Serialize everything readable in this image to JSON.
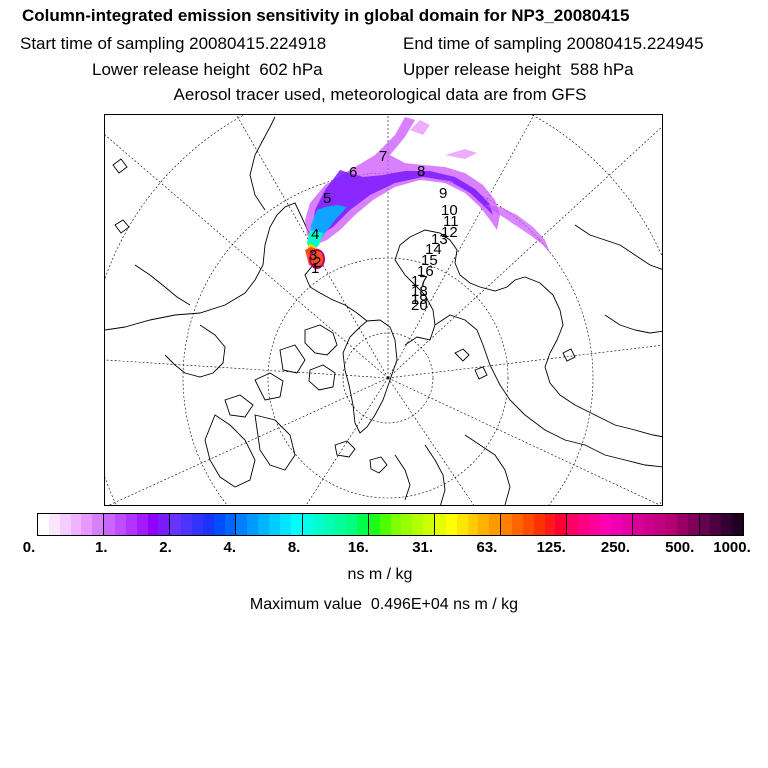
{
  "header": {
    "title": "Column-integrated emission sensitivity in global domain for NP3_20080415",
    "start_label": "Start time of sampling",
    "start_value": "20080415.224918",
    "end_label": "End time of sampling",
    "end_value": "20080415.224945",
    "lower_label": "Lower release height",
    "lower_value": "602 hPa",
    "upper_label": "Upper release height",
    "upper_value": "588 hPa",
    "aerosol_line": "Aerosol tracer used, meteorological data are from GFS"
  },
  "map": {
    "projection": "north-polar-stereographic",
    "trajectory_labels": [
      "1",
      "2",
      "3",
      "4",
      "5",
      "6",
      "7",
      "8",
      "9",
      "10",
      "11",
      "12",
      "13",
      "14",
      "15",
      "16",
      "17",
      "18",
      "19",
      "20"
    ]
  },
  "colorbar": {
    "tick_labels": [
      "0.",
      "1.",
      "2.",
      "4.",
      "8.",
      "16.",
      "31.",
      "63.",
      "125.",
      "250.",
      "500.",
      "1000."
    ],
    "colors": [
      "#ffffff",
      "#fbe6ff",
      "#f5ccff",
      "#efb3ff",
      "#e899ff",
      "#d680ff",
      "#c966ff",
      "#bf4dff",
      "#b333ff",
      "#a31aff",
      "#8f00ff",
      "#7a1aff",
      "#6633ff",
      "#4d33ff",
      "#3333ff",
      "#1a33ff",
      "#004dff",
      "#0066ff",
      "#0080ff",
      "#0099ff",
      "#00b3ff",
      "#00ccff",
      "#00e6ff",
      "#00ffff",
      "#00ffe6",
      "#00ffcc",
      "#00ffb3",
      "#00ff99",
      "#00ff80",
      "#00ff4d",
      "#1aff1a",
      "#4dff00",
      "#80ff00",
      "#99ff00",
      "#b3ff00",
      "#ccff00",
      "#e6ff00",
      "#ffff00",
      "#ffe600",
      "#ffcc00",
      "#ffb300",
      "#ff9900",
      "#ff8000",
      "#ff6600",
      "#ff4d00",
      "#ff3300",
      "#ff1a1a",
      "#ff0033",
      "#ff0066",
      "#ff0080",
      "#ff0099",
      "#ff00b3",
      "#f000b3",
      "#e600a6",
      "#d90099",
      "#cc008c",
      "#bf0080",
      "#b30073",
      "#990066",
      "#800059",
      "#660050",
      "#4d0040",
      "#330033",
      "#200020"
    ],
    "units": "ns m / kg"
  },
  "footer": {
    "max_label": "Maximum value",
    "max_value": "0.496E+04",
    "max_units": "ns m / kg"
  }
}
